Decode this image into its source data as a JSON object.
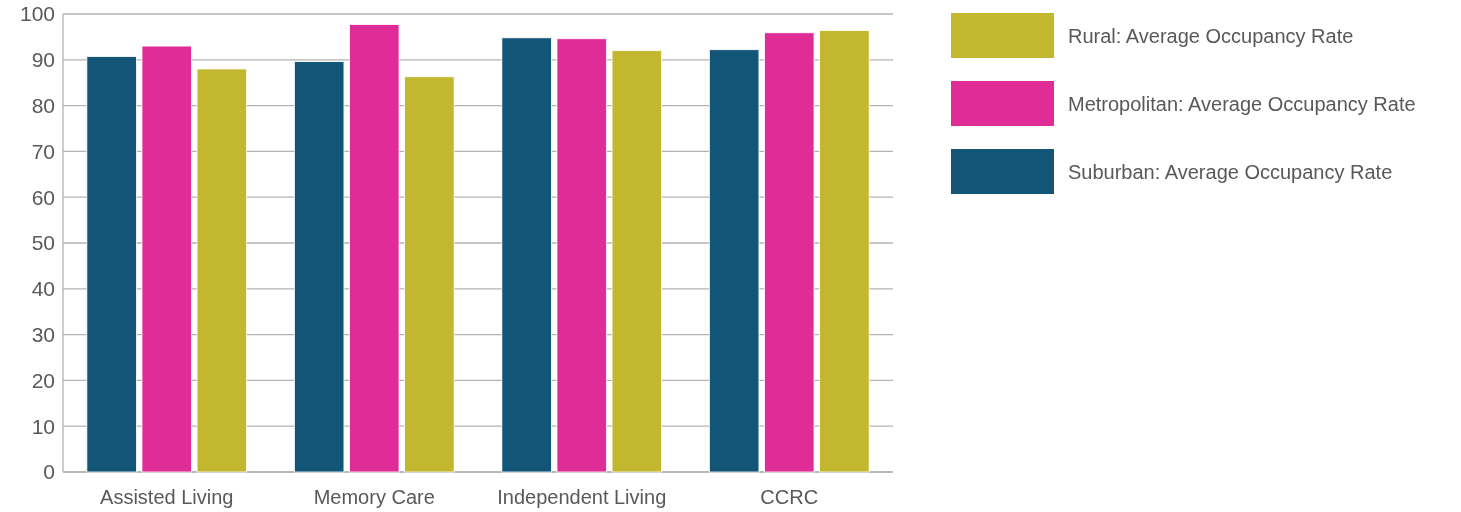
{
  "chart_data": {
    "type": "bar",
    "categories": [
      "Assisted Living",
      "Memory Care",
      "Independent Living",
      "CCRC"
    ],
    "series": [
      {
        "name": "Suburban: Average Occupancy Rate",
        "color": "#125577",
        "values": [
          90.7,
          89.6,
          94.8,
          92.2
        ]
      },
      {
        "name": "Metropolitan: Average Occupancy Rate",
        "color": "#e02c97",
        "values": [
          93.0,
          97.7,
          94.6,
          95.9
        ]
      },
      {
        "name": "Rural: Average Occupancy Rate",
        "color": "#c3b72f",
        "values": [
          88.0,
          86.3,
          92.0,
          96.4
        ]
      }
    ],
    "ylim": [
      0,
      100
    ],
    "yticks": [
      0,
      10,
      20,
      30,
      40,
      50,
      60,
      70,
      80,
      90,
      100
    ],
    "grid": "y",
    "legend": "right"
  }
}
